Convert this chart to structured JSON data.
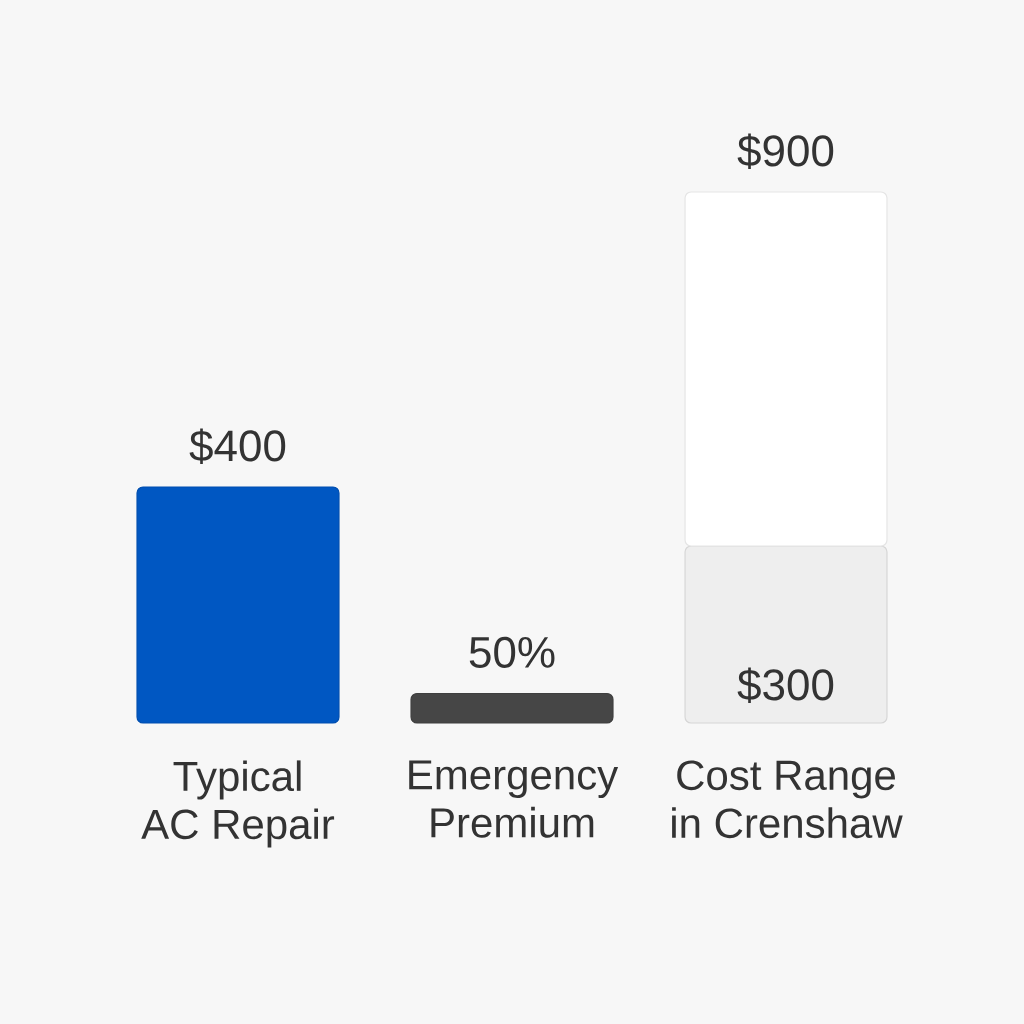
{
  "chart_data": {
    "type": "bar",
    "stacked": true,
    "categories": [
      "Typical AC Repair",
      "Emergency Premium",
      "Cost Range in Crenshaw"
    ],
    "series": [
      {
        "colors": [
          "#0057c2",
          "#464646",
          "#eeeeee"
        ],
        "values": [
          400,
          50,
          300
        ],
        "value_labels": [
          "$400",
          "50%",
          "$300"
        ]
      },
      {
        "color": "#ffffff",
        "values": [
          null,
          null,
          600
        ]
      }
    ],
    "totals": [
      null,
      null,
      "$900"
    ]
  }
}
